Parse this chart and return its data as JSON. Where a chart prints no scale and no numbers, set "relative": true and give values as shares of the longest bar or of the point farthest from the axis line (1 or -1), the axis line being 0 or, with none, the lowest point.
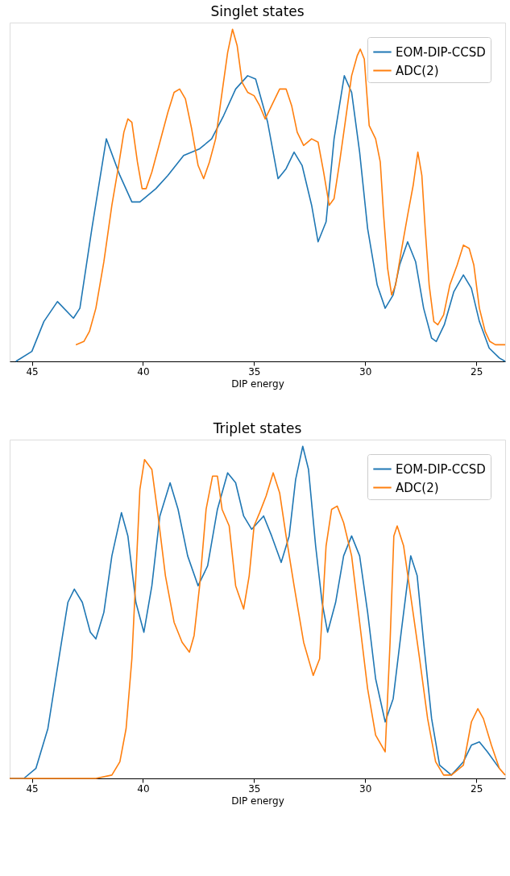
{
  "chart_data": [
    {
      "type": "line",
      "title": "Singlet states",
      "xlabel": "DIP energy",
      "relative": true,
      "xlim": [
        46.0,
        23.7
      ],
      "xticks": [
        45,
        40,
        35,
        30,
        25
      ],
      "grid": false,
      "legend": "top right",
      "marker": "none",
      "line_style": "solid",
      "series": [
        {
          "name": "EOM-DIP-CCSD",
          "color": "#1f77b4",
          "x": [
            45.72,
            45.0,
            44.46,
            43.85,
            43.13,
            42.84,
            42.3,
            41.65,
            41.04,
            40.5,
            40.14,
            39.42,
            38.88,
            38.17,
            37.45,
            36.91,
            36.37,
            35.83,
            35.29,
            34.93,
            34.39,
            33.92,
            33.56,
            33.2,
            32.84,
            32.41,
            32.12,
            31.76,
            31.4,
            30.94,
            30.61,
            30.25,
            29.89,
            29.46,
            29.1,
            28.74,
            28.45,
            28.09,
            27.73,
            27.37,
            27.01,
            26.8,
            26.44,
            26.01,
            25.58,
            25.22,
            24.86,
            24.42,
            23.96,
            23.7
          ],
          "values": [
            0.0,
            0.03,
            0.12,
            0.18,
            0.13,
            0.16,
            0.4,
            0.67,
            0.56,
            0.48,
            0.48,
            0.52,
            0.56,
            0.62,
            0.64,
            0.67,
            0.74,
            0.82,
            0.86,
            0.85,
            0.72,
            0.55,
            0.58,
            0.63,
            0.59,
            0.47,
            0.36,
            0.42,
            0.67,
            0.86,
            0.81,
            0.63,
            0.4,
            0.23,
            0.16,
            0.2,
            0.29,
            0.36,
            0.3,
            0.16,
            0.07,
            0.06,
            0.11,
            0.21,
            0.26,
            0.22,
            0.12,
            0.04,
            0.01,
            0.0
          ]
        },
        {
          "name": "ADC(2)",
          "color": "#ff7f0e",
          "x": [
            43.02,
            42.66,
            42.41,
            42.12,
            41.76,
            41.4,
            41.12,
            40.86,
            40.68,
            40.5,
            40.25,
            40.04,
            39.86,
            39.6,
            39.24,
            38.88,
            38.6,
            38.35,
            38.09,
            37.81,
            37.52,
            37.27,
            37.01,
            36.73,
            36.44,
            36.19,
            35.97,
            35.76,
            35.54,
            35.29,
            35.0,
            34.75,
            34.5,
            34.21,
            33.85,
            33.56,
            33.31,
            33.06,
            32.77,
            32.41,
            32.12,
            31.87,
            31.62,
            31.4,
            31.15,
            30.9,
            30.61,
            30.36,
            30.22,
            30.04,
            29.82,
            29.53,
            29.32,
            29.17,
            28.99,
            28.81,
            28.63,
            28.38,
            28.09,
            27.84,
            27.63,
            27.45,
            27.3,
            27.12,
            26.91,
            26.73,
            26.47,
            26.19,
            25.86,
            25.58,
            25.32,
            25.11,
            24.86,
            24.6,
            24.39,
            24.14,
            23.7
          ],
          "values": [
            0.05,
            0.06,
            0.09,
            0.16,
            0.3,
            0.47,
            0.58,
            0.69,
            0.73,
            0.72,
            0.6,
            0.52,
            0.52,
            0.57,
            0.66,
            0.75,
            0.81,
            0.82,
            0.79,
            0.7,
            0.59,
            0.55,
            0.6,
            0.67,
            0.81,
            0.93,
            1.0,
            0.95,
            0.84,
            0.81,
            0.8,
            0.77,
            0.73,
            0.77,
            0.82,
            0.82,
            0.77,
            0.69,
            0.65,
            0.67,
            0.66,
            0.57,
            0.47,
            0.49,
            0.6,
            0.72,
            0.86,
            0.92,
            0.94,
            0.91,
            0.71,
            0.67,
            0.6,
            0.44,
            0.28,
            0.2,
            0.23,
            0.33,
            0.44,
            0.53,
            0.63,
            0.56,
            0.4,
            0.23,
            0.12,
            0.11,
            0.14,
            0.23,
            0.29,
            0.35,
            0.34,
            0.29,
            0.16,
            0.09,
            0.06,
            0.05,
            0.05
          ]
        }
      ]
    },
    {
      "type": "line",
      "title": "Triplet states",
      "xlabel": "DIP energy",
      "relative": true,
      "xlim": [
        46.0,
        23.7
      ],
      "xticks": [
        45,
        40,
        35,
        30,
        25
      ],
      "grid": false,
      "legend": "top right",
      "marker": "none",
      "line_style": "solid",
      "series": [
        {
          "name": "EOM-DIP-CCSD",
          "color": "#1f77b4",
          "x": [
            46.0,
            45.36,
            44.82,
            44.28,
            43.74,
            43.38,
            43.09,
            42.73,
            42.37,
            42.12,
            41.76,
            41.4,
            40.97,
            40.68,
            40.32,
            39.96,
            39.6,
            39.24,
            38.78,
            38.42,
            37.99,
            37.52,
            37.09,
            36.65,
            36.19,
            35.83,
            35.47,
            35.11,
            34.57,
            34.21,
            33.78,
            33.42,
            33.13,
            32.81,
            32.55,
            32.23,
            31.94,
            31.69,
            31.33,
            30.97,
            30.61,
            30.25,
            29.89,
            29.53,
            29.1,
            28.74,
            28.38,
            27.95,
            27.66,
            27.37,
            27.01,
            26.65,
            26.12,
            25.58,
            25.22,
            24.86,
            24.5,
            23.96
          ],
          "values": [
            0.0,
            0.0,
            0.03,
            0.15,
            0.38,
            0.53,
            0.57,
            0.53,
            0.44,
            0.42,
            0.5,
            0.67,
            0.8,
            0.73,
            0.53,
            0.44,
            0.58,
            0.79,
            0.89,
            0.81,
            0.67,
            0.58,
            0.64,
            0.81,
            0.92,
            0.89,
            0.79,
            0.75,
            0.79,
            0.73,
            0.65,
            0.73,
            0.9,
            1.0,
            0.93,
            0.7,
            0.53,
            0.44,
            0.53,
            0.67,
            0.73,
            0.67,
            0.5,
            0.3,
            0.17,
            0.24,
            0.44,
            0.67,
            0.61,
            0.41,
            0.18,
            0.04,
            0.01,
            0.05,
            0.1,
            0.11,
            0.08,
            0.03
          ]
        },
        {
          "name": "ADC(2)",
          "color": "#ff7f0e",
          "x": [
            46.0,
            42.12,
            41.4,
            41.04,
            40.76,
            40.5,
            40.32,
            40.14,
            39.93,
            39.6,
            39.32,
            38.99,
            38.6,
            38.24,
            37.91,
            37.7,
            37.45,
            37.16,
            36.87,
            36.65,
            36.44,
            36.12,
            35.83,
            35.47,
            35.22,
            35.0,
            34.75,
            34.46,
            34.14,
            33.85,
            33.56,
            33.2,
            32.77,
            32.34,
            32.05,
            31.76,
            31.51,
            31.26,
            30.97,
            30.61,
            30.25,
            29.89,
            29.53,
            29.1,
            28.88,
            28.71,
            28.56,
            28.27,
            27.91,
            27.55,
            27.19,
            26.83,
            26.47,
            26.12,
            25.58,
            25.22,
            24.93,
            24.68,
            24.32,
            23.96,
            23.7
          ],
          "values": [
            0.0,
            0.0,
            0.01,
            0.05,
            0.15,
            0.36,
            0.61,
            0.87,
            0.96,
            0.93,
            0.79,
            0.61,
            0.47,
            0.41,
            0.38,
            0.43,
            0.58,
            0.81,
            0.91,
            0.91,
            0.81,
            0.76,
            0.58,
            0.51,
            0.61,
            0.76,
            0.8,
            0.85,
            0.92,
            0.86,
            0.73,
            0.58,
            0.41,
            0.31,
            0.36,
            0.7,
            0.81,
            0.82,
            0.77,
            0.67,
            0.47,
            0.27,
            0.13,
            0.08,
            0.41,
            0.73,
            0.76,
            0.7,
            0.53,
            0.36,
            0.18,
            0.05,
            0.01,
            0.01,
            0.04,
            0.17,
            0.21,
            0.18,
            0.1,
            0.03,
            0.01
          ]
        }
      ]
    }
  ]
}
